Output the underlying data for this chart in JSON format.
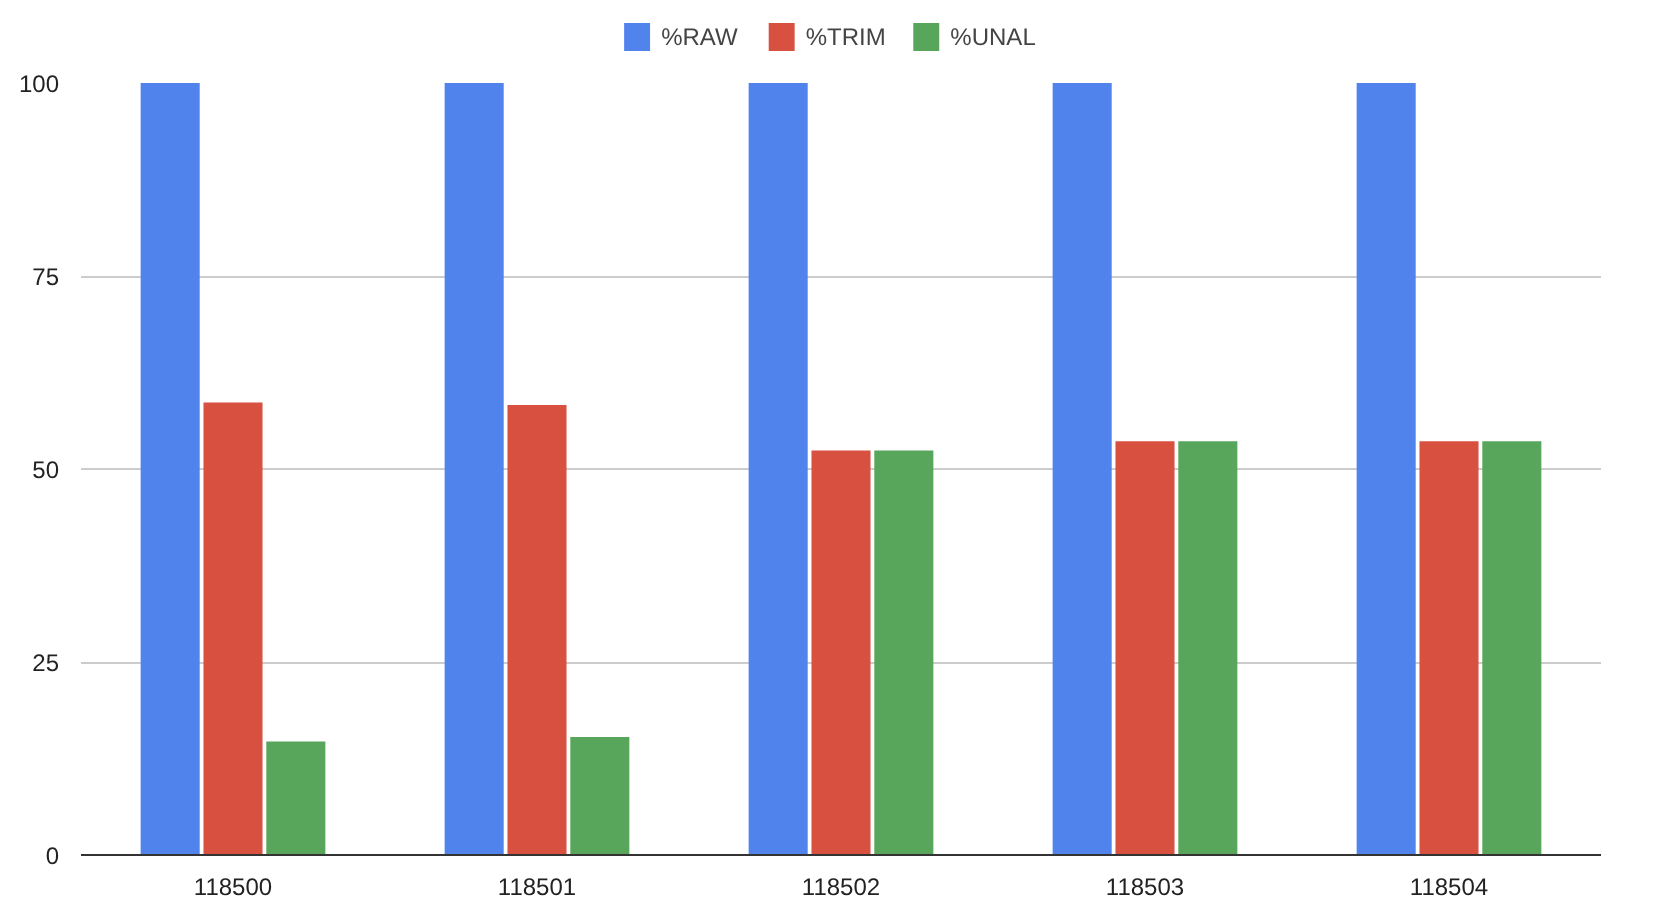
{
  "chart_data": {
    "type": "bar",
    "categories": [
      "118500",
      "118501",
      "118502",
      "118503",
      "118504"
    ],
    "series": [
      {
        "name": "%RAW",
        "color": "#5083ec",
        "values": [
          100,
          100,
          100,
          100,
          100
        ]
      },
      {
        "name": "%TRIM",
        "color": "#d85140",
        "values": [
          58.6,
          58.3,
          52.4,
          53.6,
          53.6
        ]
      },
      {
        "name": "%UNAL",
        "color": "#58a55c",
        "values": [
          14.7,
          15.3,
          52.4,
          53.6,
          53.6
        ]
      }
    ],
    "ylim": [
      0,
      100
    ],
    "yticks": [
      0,
      25,
      50,
      75,
      100
    ],
    "grid": "y",
    "legend": "top"
  }
}
